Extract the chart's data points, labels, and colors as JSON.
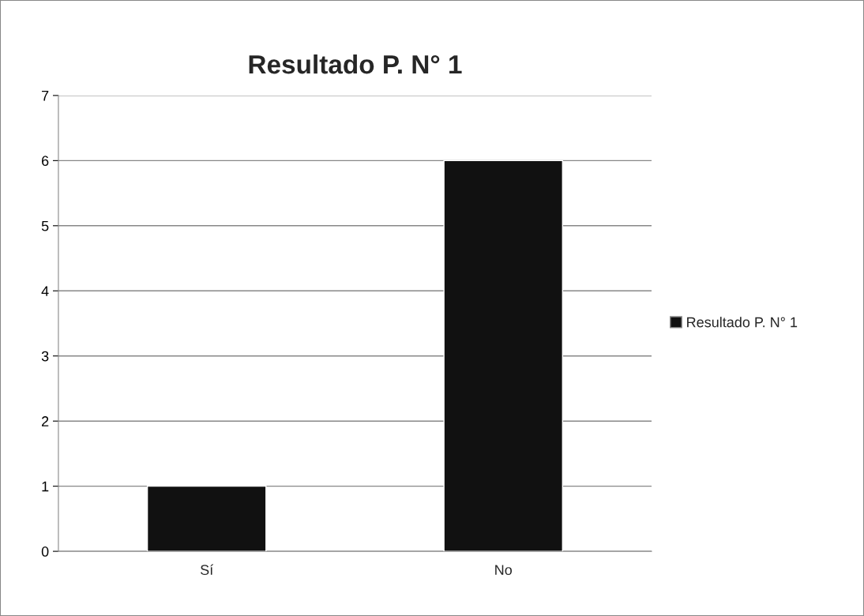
{
  "chart_data": {
    "type": "bar",
    "title": "Resultado P. N° 1",
    "categories": [
      "Sí",
      "No"
    ],
    "series": [
      {
        "name": "Resultado P. N° 1",
        "color": "#111111",
        "values": [
          1,
          6
        ]
      }
    ],
    "ylim": [
      0,
      7
    ],
    "yticks": [
      0,
      1,
      2,
      3,
      4,
      5,
      6,
      7
    ],
    "grid": "y",
    "legend": "right"
  }
}
